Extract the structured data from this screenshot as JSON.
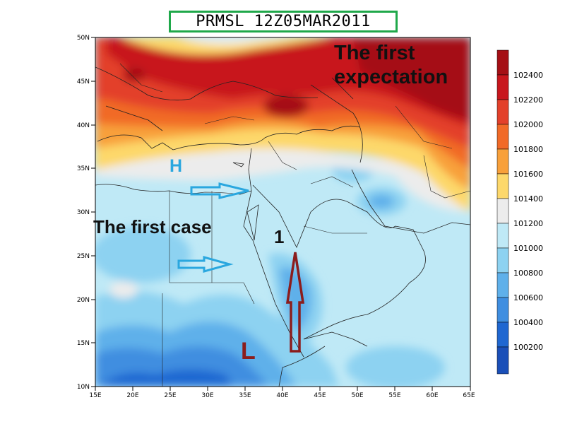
{
  "title": "PRMSL 12Z05MAR2011",
  "map": {
    "lon_ticks": [
      "15E",
      "20E",
      "25E",
      "30E",
      "35E",
      "40E",
      "45E",
      "50E",
      "55E",
      "60E",
      "65E"
    ],
    "lat_ticks": [
      "50N",
      "45N",
      "40N",
      "35N",
      "30N",
      "25N",
      "20N",
      "15N",
      "10N"
    ],
    "lon_range": [
      15,
      65
    ],
    "lat_range": [
      10,
      50
    ]
  },
  "annotations": {
    "first_expectation_line1": "The first",
    "first_expectation_line2": "expectation",
    "first_case": "The first case",
    "one": "1",
    "high": "H",
    "low": "L"
  },
  "colorbar": {
    "labels": [
      "102400",
      "102200",
      "102000",
      "101800",
      "101600",
      "101400",
      "101200",
      "101000",
      "100800",
      "100600",
      "100400",
      "100200"
    ],
    "colors": [
      "#a50f15",
      "#c8161d",
      "#e3402a",
      "#f16a27",
      "#f8a03a",
      "#fdd86b",
      "#ececec",
      "#bfe9f6",
      "#8dd2f1",
      "#5fb0ea",
      "#3f8ee0",
      "#1f67d1",
      "#1a4fb8"
    ],
    "colors_note": "colors run top (highest) to bottom (lowest)"
  },
  "colors": {
    "title_border": "#1fa84a",
    "high_label": "#2aa7df",
    "low_label": "#8b1d1d",
    "arrow_blue": "#2aa7df",
    "arrow_red": "#8b1d1d"
  }
}
